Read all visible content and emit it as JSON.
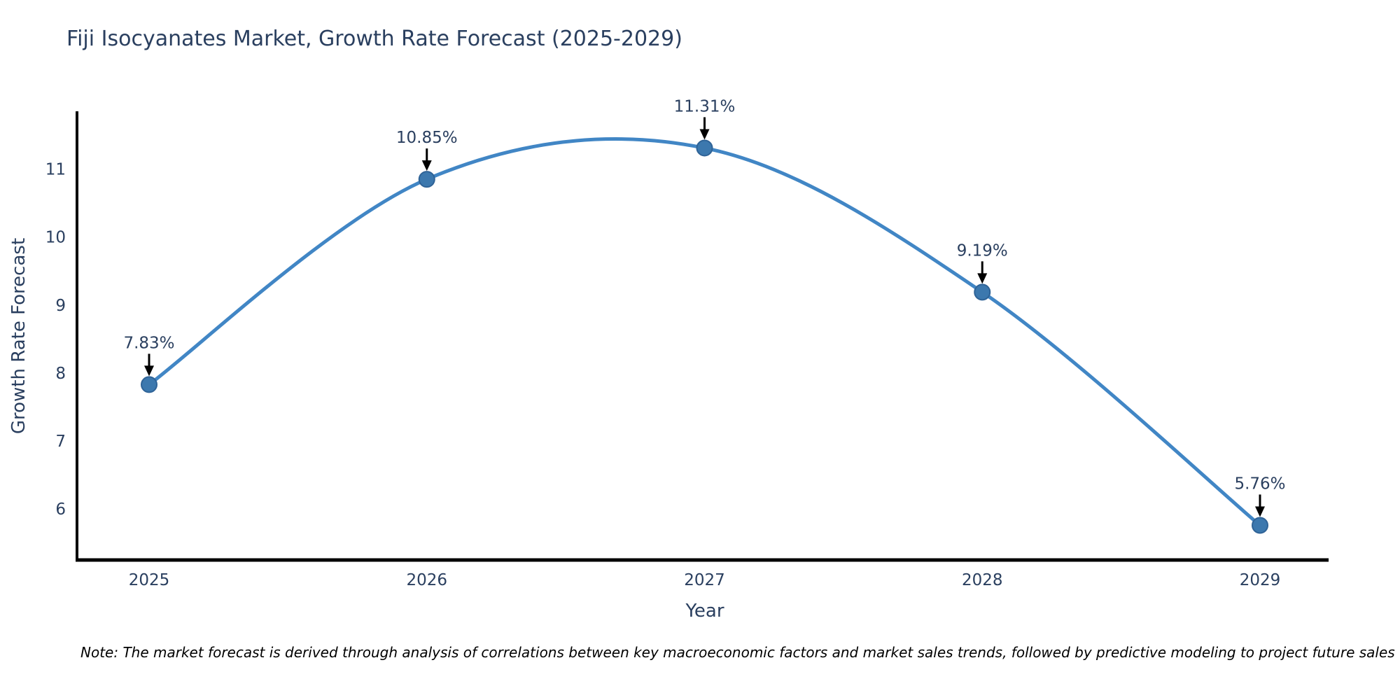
{
  "chart_data": {
    "type": "line",
    "line_shape": "spline",
    "title": "Fiji Isocyanates Market, Growth Rate Forecast (2025-2029)",
    "xlabel": "Year",
    "ylabel": "Growth Rate Forecast",
    "categories": [
      "2025",
      "2026",
      "2027",
      "2028",
      "2029"
    ],
    "series": [
      {
        "name": "Growth Rate Forecast",
        "values": [
          7.83,
          10.85,
          11.31,
          9.19,
          5.76
        ]
      }
    ],
    "point_labels": [
      "7.83%",
      "10.85%",
      "11.31%",
      "9.19%",
      "5.76%"
    ],
    "y_ticks": [
      6,
      7,
      8,
      9,
      10,
      11
    ],
    "ylim": [
      5.25,
      11.85
    ],
    "grid": false,
    "legend": "none",
    "colors": {
      "line": "#4186c5",
      "marker_fill": "#3c78ae",
      "marker_edge": "#2f6397",
      "axis": "#000000",
      "tick_text": "#2a3f5f",
      "annotation_text": "#2a3f5f",
      "annotation_arrow": "#000000",
      "background": "#ffffff"
    },
    "note": "Note: The market forecast is derived through analysis of correlations between key macroeconomic factors and market sales trends, followed by predictive modeling to project future sales"
  }
}
